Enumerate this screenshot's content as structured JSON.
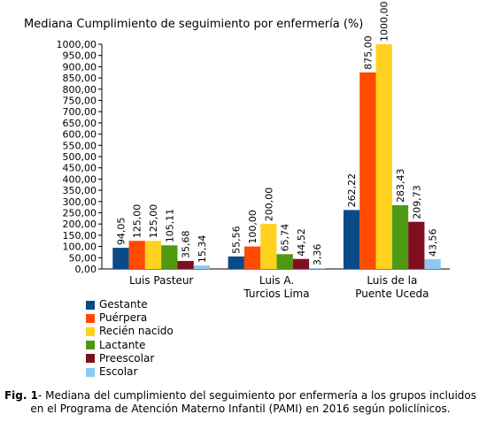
{
  "chart_data": {
    "type": "bar",
    "title": "Mediana Cumplimiento de seguimiento por enfermería (%)",
    "categories": [
      [
        "Luis Pasteur"
      ],
      [
        "Luis A.",
        "Turcios Lima"
      ],
      [
        "Luis de la",
        "Puente Uceda"
      ]
    ],
    "series": [
      {
        "name": "Gestante",
        "color": "#0a4a86",
        "values": [
          94.05,
          55.56,
          262.22
        ],
        "labels": [
          "94,05",
          "55,56",
          "262,22"
        ]
      },
      {
        "name": "Puérpera",
        "color": "#ff4a00",
        "values": [
          125.0,
          100.0,
          875.0
        ],
        "labels": [
          "125,00",
          "100,00",
          "875,00"
        ]
      },
      {
        "name": "Recién nacido",
        "color": "#ffd21f",
        "values": [
          125.0,
          200.0,
          1000.0
        ],
        "labels": [
          "125,00",
          "200,00",
          "1000,00"
        ]
      },
      {
        "name": "Lactante",
        "color": "#4d9a12",
        "values": [
          105.11,
          65.74,
          283.43
        ],
        "labels": [
          "105,11",
          "65,74",
          "283,43"
        ]
      },
      {
        "name": "Preescolar",
        "color": "#7f0f1f",
        "values": [
          35.68,
          44.52,
          209.73
        ],
        "labels": [
          "35,68",
          "44,52",
          "209,73"
        ]
      },
      {
        "name": "Escolar",
        "color": "#8ec9f3",
        "values": [
          15.34,
          3.36,
          43.56
        ],
        "labels": [
          "15,34",
          "3,36",
          "43,56"
        ]
      }
    ],
    "ylim": [
      0,
      1000
    ],
    "yticks": [
      "0,00",
      "50,00",
      "100,00",
      "150,00",
      "200,00",
      "250,00",
      "300,00",
      "350,00",
      "400,00",
      "450,00",
      "500,00",
      "550,00",
      "600,00",
      "650,00",
      "700,00",
      "750,00",
      "800,00",
      "850,00",
      "900,00",
      "950,00",
      "1000,00"
    ],
    "ytick_step": 50,
    "grid": false,
    "legend_position": "bottom-left"
  },
  "caption": {
    "label": "Fig. 1",
    "text": "- Mediana del cumplimiento del seguimiento por enfermería a los grupos incluidos en el Programa de Atención Materno Infantil (PAMI) en 2016 según policlínicos."
  }
}
